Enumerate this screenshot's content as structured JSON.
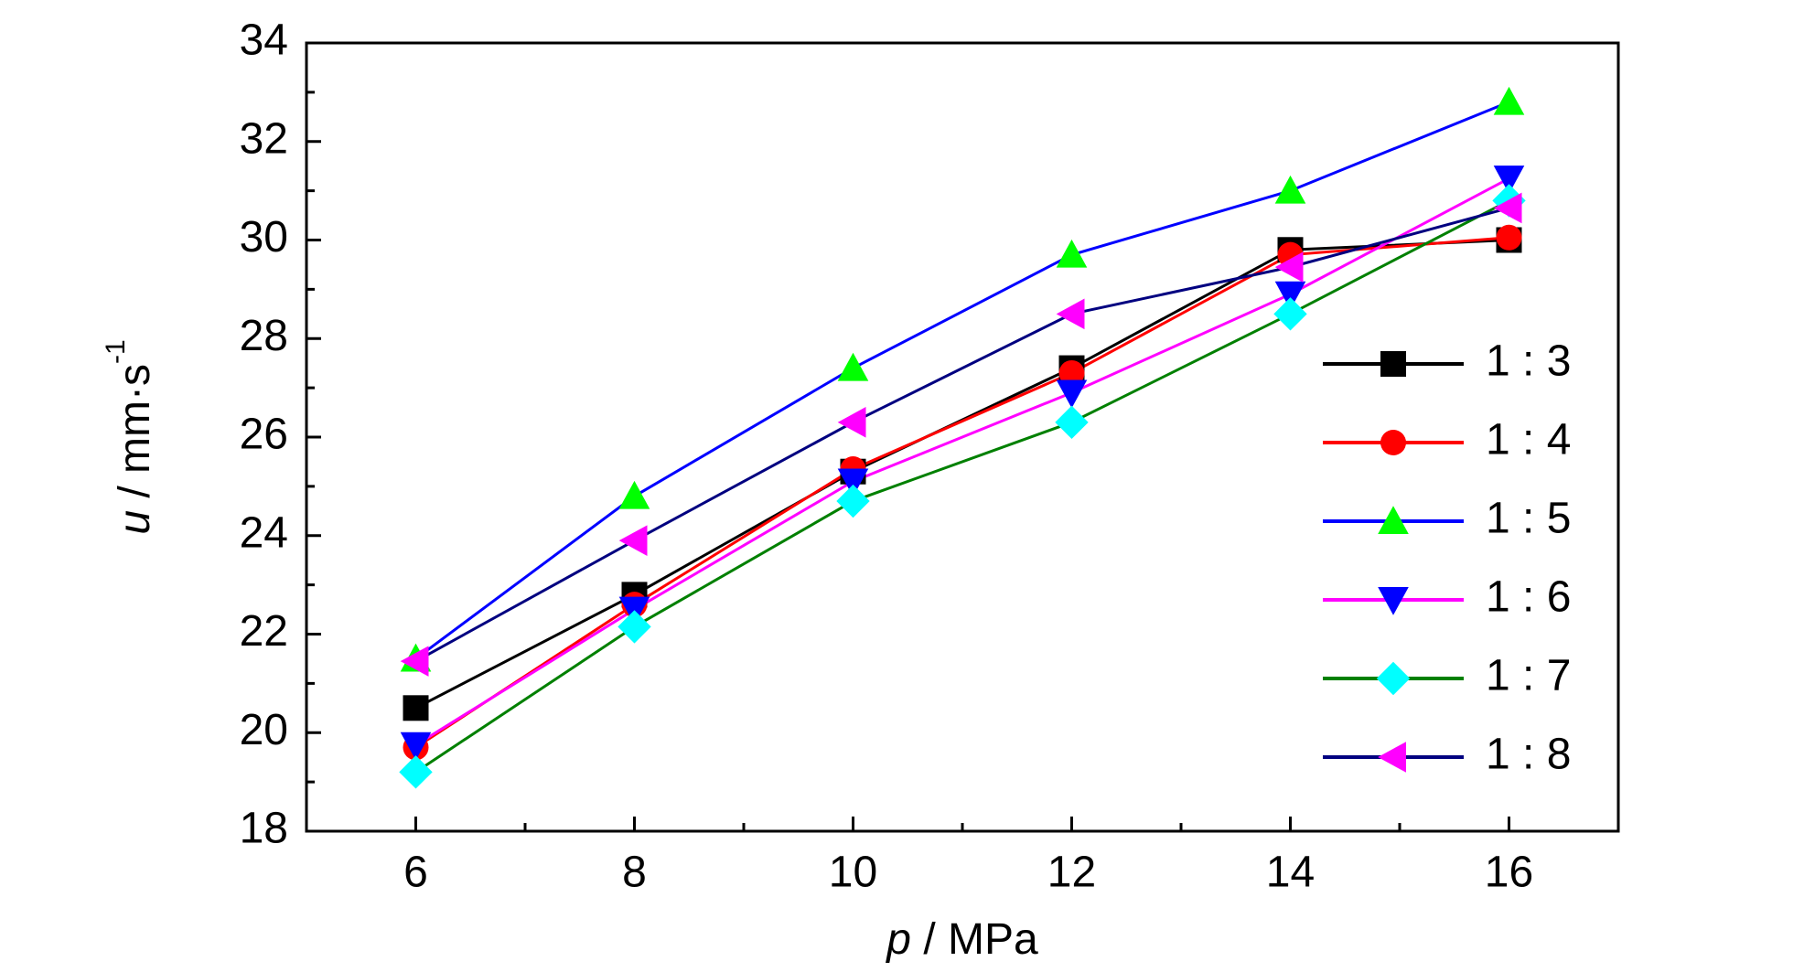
{
  "chart_data": {
    "type": "line",
    "xlabel": {
      "symbol": "p",
      "text": " / MPa"
    },
    "ylabel": {
      "symbol": "u",
      "text": " / mm·s",
      "exponent": "-1"
    },
    "x": [
      6,
      8,
      10,
      12,
      14,
      16
    ],
    "series": [
      {
        "name": "1 : 3",
        "color": "#000000",
        "marker": "square",
        "marker_color": "#000000",
        "values": [
          20.5,
          22.8,
          25.3,
          27.4,
          29.8,
          30.0
        ]
      },
      {
        "name": "1 : 4",
        "color": "#ff0000",
        "marker": "circle",
        "marker_color": "#ff0000",
        "values": [
          19.7,
          22.6,
          25.35,
          27.3,
          29.7,
          30.05
        ]
      },
      {
        "name": "1 : 5",
        "color": "#0000ff",
        "marker": "triangle-up",
        "marker_color": "#00ff00",
        "values": [
          21.5,
          24.8,
          27.4,
          29.7,
          31.0,
          32.8
        ]
      },
      {
        "name": "1 : 6",
        "color": "#ff00ff",
        "marker": "triangle-down",
        "marker_color": "#0000ff",
        "values": [
          19.75,
          22.5,
          25.1,
          26.9,
          28.9,
          31.25
        ]
      },
      {
        "name": "1 : 7",
        "color": "#008000",
        "marker": "diamond",
        "marker_color": "#00ffff",
        "values": [
          19.2,
          22.15,
          24.7,
          26.3,
          28.5,
          30.8
        ]
      },
      {
        "name": "1 : 8",
        "color": "#000080",
        "marker": "triangle-left",
        "marker_color": "#ff00ff",
        "values": [
          21.45,
          23.9,
          26.3,
          28.5,
          29.45,
          30.65
        ]
      }
    ],
    "xlim": [
      5,
      17
    ],
    "xticks": [
      6,
      8,
      10,
      12,
      14,
      16
    ],
    "xticks_minor": [
      5,
      7,
      9,
      11,
      13,
      15,
      17
    ],
    "ylim": [
      18,
      34
    ],
    "yticks": [
      18,
      20,
      22,
      24,
      26,
      28,
      30,
      32,
      34
    ],
    "yticks_minor": [
      19,
      21,
      23,
      25,
      27,
      29,
      31,
      33
    ],
    "legend": "right"
  }
}
